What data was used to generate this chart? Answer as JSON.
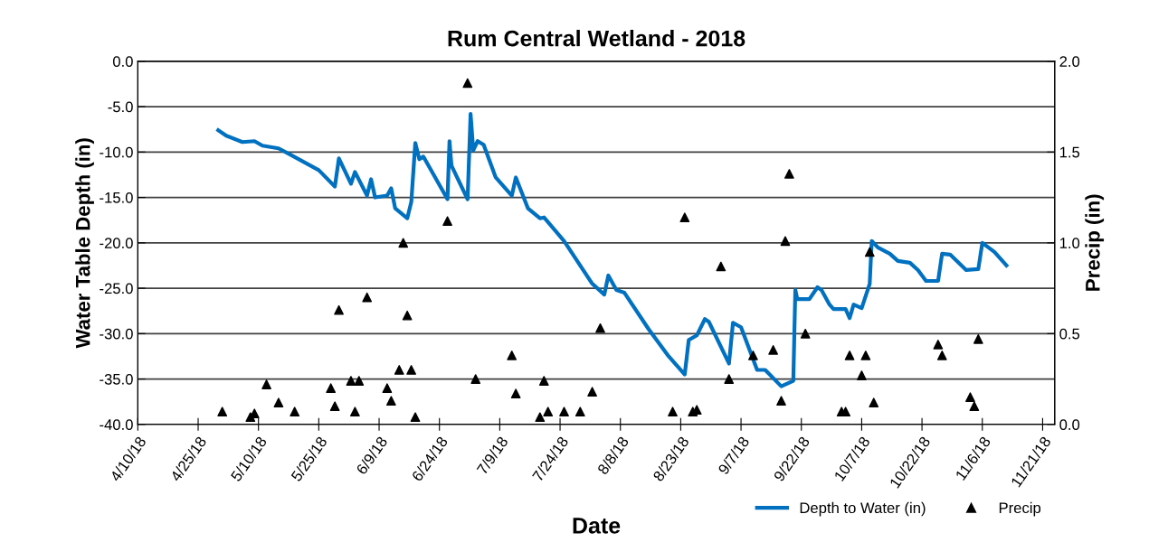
{
  "chart_data": {
    "type": "line",
    "title": "Rum Central Wetland - 2018",
    "xlabel": "Date",
    "ylabel": "Water Table Depth (in)",
    "y2label": "Precip (in)",
    "xlim": [
      "2018-04-10",
      "2018-11-24"
    ],
    "xticks": [
      {
        "value": "2018-04-10",
        "label": "4/10/18"
      },
      {
        "value": "2018-04-25",
        "label": "4/25/18"
      },
      {
        "value": "2018-05-10",
        "label": "5/10/18"
      },
      {
        "value": "2018-05-25",
        "label": "5/25/18"
      },
      {
        "value": "2018-06-09",
        "label": "6/9/18"
      },
      {
        "value": "2018-06-24",
        "label": "6/24/18"
      },
      {
        "value": "2018-07-09",
        "label": "7/9/18"
      },
      {
        "value": "2018-07-24",
        "label": "7/24/18"
      },
      {
        "value": "2018-08-08",
        "label": "8/8/18"
      },
      {
        "value": "2018-08-23",
        "label": "8/23/18"
      },
      {
        "value": "2018-09-07",
        "label": "9/7/18"
      },
      {
        "value": "2018-09-22",
        "label": "9/22/18"
      },
      {
        "value": "2018-10-07",
        "label": "10/7/18"
      },
      {
        "value": "2018-10-22",
        "label": "10/22/18"
      },
      {
        "value": "2018-11-06",
        "label": "11/6/18"
      },
      {
        "value": "2018-11-21",
        "label": "11/21/18"
      }
    ],
    "ylim": [
      -40,
      0
    ],
    "yticks": [
      {
        "value": -40,
        "label": "-40.0"
      },
      {
        "value": -35,
        "label": "-35.0"
      },
      {
        "value": -30,
        "label": "-30.0"
      },
      {
        "value": -25,
        "label": "-25.0"
      },
      {
        "value": -20,
        "label": "-20.0"
      },
      {
        "value": -15,
        "label": "-15.0"
      },
      {
        "value": -10,
        "label": "-10.0"
      },
      {
        "value": -5,
        "label": "-5.0"
      },
      {
        "value": 0,
        "label": "0.0"
      }
    ],
    "y2lim": [
      0,
      2
    ],
    "y2ticks": [
      {
        "value": 0,
        "label": "0.0"
      },
      {
        "value": 0.5,
        "label": "0.5"
      },
      {
        "value": 1,
        "label": "1.0"
      },
      {
        "value": 1.5,
        "label": "1.5"
      },
      {
        "value": 2,
        "label": "2.0"
      }
    ],
    "grid": "y",
    "legend": "bottom right",
    "series": [
      {
        "name": "Depth to Water (in)",
        "color": "#0070c0",
        "marker": "none",
        "line_style": "solid",
        "x": [
          "2018-04-30",
          "2018-05-02",
          "2018-05-06",
          "2018-05-09",
          "2018-05-11",
          "2018-05-15",
          "2018-05-18",
          "2018-05-25",
          "2018-05-29",
          "2018-05-30",
          "2018-06-02",
          "2018-06-03",
          "2018-06-06",
          "2018-06-07",
          "2018-06-08",
          "2018-06-11",
          "2018-06-12",
          "2018-06-13",
          "2018-06-16",
          "2018-06-17",
          "2018-06-18",
          "2018-06-19",
          "2018-06-20",
          "2018-06-26",
          "2018-06-26T12:00",
          "2018-06-27",
          "2018-07-01",
          "2018-07-01T18:00",
          "2018-07-02T10:00",
          "2018-07-03T12:00",
          "2018-07-05",
          "2018-07-08",
          "2018-07-12",
          "2018-07-13",
          "2018-07-16",
          "2018-07-19",
          "2018-07-20",
          "2018-07-25",
          "2018-08-01",
          "2018-08-04",
          "2018-08-05",
          "2018-08-07",
          "2018-08-09",
          "2018-08-15",
          "2018-08-20",
          "2018-08-24",
          "2018-08-25",
          "2018-08-27",
          "2018-08-29",
          "2018-08-30",
          "2018-09-04",
          "2018-09-05",
          "2018-09-07",
          "2018-09-11",
          "2018-09-13",
          "2018-09-17",
          "2018-09-20",
          "2018-09-20T12:00",
          "2018-09-21",
          "2018-09-24",
          "2018-09-26",
          "2018-09-27",
          "2018-09-29",
          "2018-09-30",
          "2018-10-03",
          "2018-10-04",
          "2018-10-05",
          "2018-10-07",
          "2018-10-09",
          "2018-10-09T12:00",
          "2018-10-11",
          "2018-10-14",
          "2018-10-16",
          "2018-10-19",
          "2018-10-21",
          "2018-10-23",
          "2018-10-26",
          "2018-10-27",
          "2018-10-29",
          "2018-11-02",
          "2018-11-05",
          "2018-11-06",
          "2018-11-09",
          "2018-11-12"
        ],
        "values": [
          -7.6,
          -8.2,
          -8.9,
          -8.8,
          -9.3,
          -9.6,
          -10.3,
          -12.0,
          -13.8,
          -10.7,
          -13.5,
          -12.2,
          -14.8,
          -13.0,
          -15.0,
          -14.8,
          -14.0,
          -16.2,
          -17.3,
          -15.5,
          -9.0,
          -10.8,
          -10.5,
          -15.2,
          -8.8,
          -11.5,
          -15.2,
          -5.8,
          -9.8,
          -8.8,
          -9.2,
          -12.8,
          -14.8,
          -12.8,
          -16.2,
          -17.3,
          -17.2,
          -19.8,
          -24.5,
          -25.7,
          -23.6,
          -25.2,
          -25.5,
          -29.5,
          -32.5,
          -34.5,
          -30.7,
          -30.2,
          -28.4,
          -28.7,
          -33.3,
          -28.8,
          -29.3,
          -34.0,
          -34.0,
          -35.8,
          -35.2,
          -25.2,
          -26.2,
          -26.2,
          -24.9,
          -25.2,
          -26.8,
          -27.3,
          -27.3,
          -28.3,
          -26.8,
          -27.2,
          -24.5,
          -19.8,
          -20.5,
          -21.2,
          -22.0,
          -22.2,
          -23.0,
          -24.2,
          -24.2,
          -21.2,
          -21.3,
          -23.0,
          -22.9,
          -20.0,
          -21.0,
          -22.5
        ]
      },
      {
        "name": "Precip",
        "type": "scatter",
        "color": "#000000",
        "marker": "triangle",
        "axis": "y2",
        "x": [
          "2018-05-01",
          "2018-05-08",
          "2018-05-09",
          "2018-05-12",
          "2018-05-15",
          "2018-05-19",
          "2018-05-28",
          "2018-05-29",
          "2018-05-30",
          "2018-06-02",
          "2018-06-03",
          "2018-06-04",
          "2018-06-06",
          "2018-06-11",
          "2018-06-12",
          "2018-06-14",
          "2018-06-15",
          "2018-06-16",
          "2018-06-17",
          "2018-06-18",
          "2018-06-26",
          "2018-07-01",
          "2018-07-03",
          "2018-07-12",
          "2018-07-13",
          "2018-07-19",
          "2018-07-20",
          "2018-07-21",
          "2018-07-25",
          "2018-07-29",
          "2018-08-01",
          "2018-08-03",
          "2018-08-21",
          "2018-08-24",
          "2018-08-26",
          "2018-08-27",
          "2018-09-02",
          "2018-09-04",
          "2018-09-10",
          "2018-09-15",
          "2018-09-17",
          "2018-09-18",
          "2018-09-19",
          "2018-09-23",
          "2018-10-02",
          "2018-10-03",
          "2018-10-04",
          "2018-10-07",
          "2018-10-08",
          "2018-10-09",
          "2018-10-10",
          "2018-10-26",
          "2018-10-27",
          "2018-11-03",
          "2018-11-04",
          "2018-11-05"
        ],
        "values": [
          0.07,
          0.04,
          0.06,
          0.22,
          0.12,
          0.07,
          0.2,
          0.1,
          0.63,
          0.24,
          0.07,
          0.24,
          0.7,
          0.2,
          0.13,
          0.3,
          1.0,
          0.6,
          0.3,
          0.04,
          1.12,
          1.88,
          0.25,
          0.38,
          0.17,
          0.04,
          0.24,
          0.07,
          0.07,
          0.07,
          0.18,
          0.53,
          0.07,
          1.14,
          0.07,
          0.08,
          0.87,
          0.25,
          0.38,
          0.41,
          0.13,
          1.01,
          1.38,
          0.5,
          0.07,
          0.07,
          0.38,
          0.27,
          0.38,
          0.95,
          0.12,
          0.44,
          0.38,
          0.15,
          0.1,
          0.47
        ]
      }
    ]
  }
}
